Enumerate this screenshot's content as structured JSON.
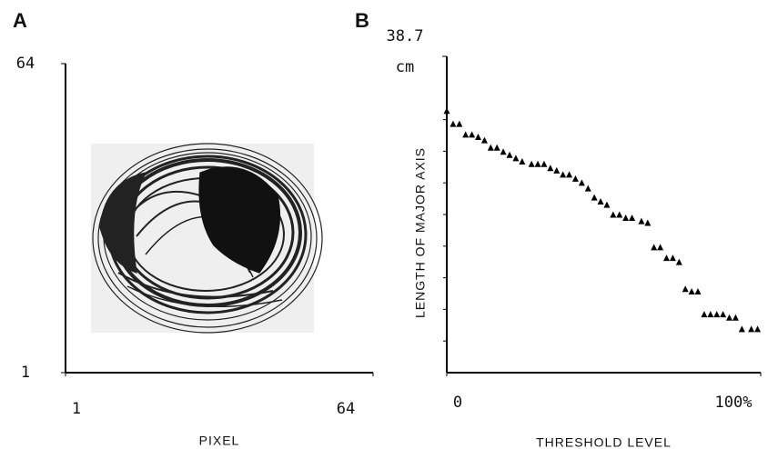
{
  "chart_data": [
    {
      "type": "contour-image",
      "panel": "A",
      "xlabel": "PIXEL",
      "xlim": [
        1,
        64
      ],
      "ylim": [
        1,
        64
      ],
      "xticks": [
        1,
        64
      ],
      "yticks": [
        1,
        64
      ]
    },
    {
      "type": "scatter",
      "panel": "B",
      "xlabel": "THRESHOLD LEVEL",
      "ylabel": "LENGTH OF MAJOR AXIS",
      "y_unit": "cm",
      "xlim": [
        0,
        100
      ],
      "ylim": [
        0,
        38.7
      ],
      "xticks": [
        0,
        {
          "value": 100,
          "label": "100%"
        }
      ],
      "yticks": [
        38.7
      ],
      "minor_yticks": [
        3.87,
        7.74,
        11.61,
        15.48,
        19.35,
        23.22,
        27.09,
        30.96
      ],
      "color": "#000000",
      "x": [
        0,
        2,
        4,
        6,
        8,
        10,
        12,
        14,
        16,
        18,
        20,
        22,
        24,
        27,
        29,
        31,
        33,
        35,
        37,
        39,
        41,
        43,
        45,
        47,
        49,
        51,
        53,
        55,
        57,
        59,
        62,
        64,
        66,
        68,
        70,
        72,
        74,
        76,
        78,
        80,
        82,
        84,
        86,
        88,
        90,
        92,
        94,
        97,
        99
      ],
      "values": [
        32.0,
        30.4,
        30.4,
        29.1,
        29.1,
        28.8,
        28.4,
        27.5,
        27.5,
        27.0,
        26.6,
        26.2,
        25.8,
        25.5,
        25.5,
        25.5,
        25.0,
        24.7,
        24.2,
        24.2,
        23.7,
        23.2,
        22.5,
        21.4,
        20.9,
        20.5,
        19.3,
        19.3,
        18.9,
        18.9,
        18.5,
        18.3,
        15.3,
        15.3,
        14.0,
        14.0,
        13.5,
        10.2,
        9.9,
        9.9,
        7.1,
        7.1,
        7.1,
        7.1,
        6.7,
        6.7,
        5.3,
        5.3,
        5.3
      ]
    }
  ]
}
